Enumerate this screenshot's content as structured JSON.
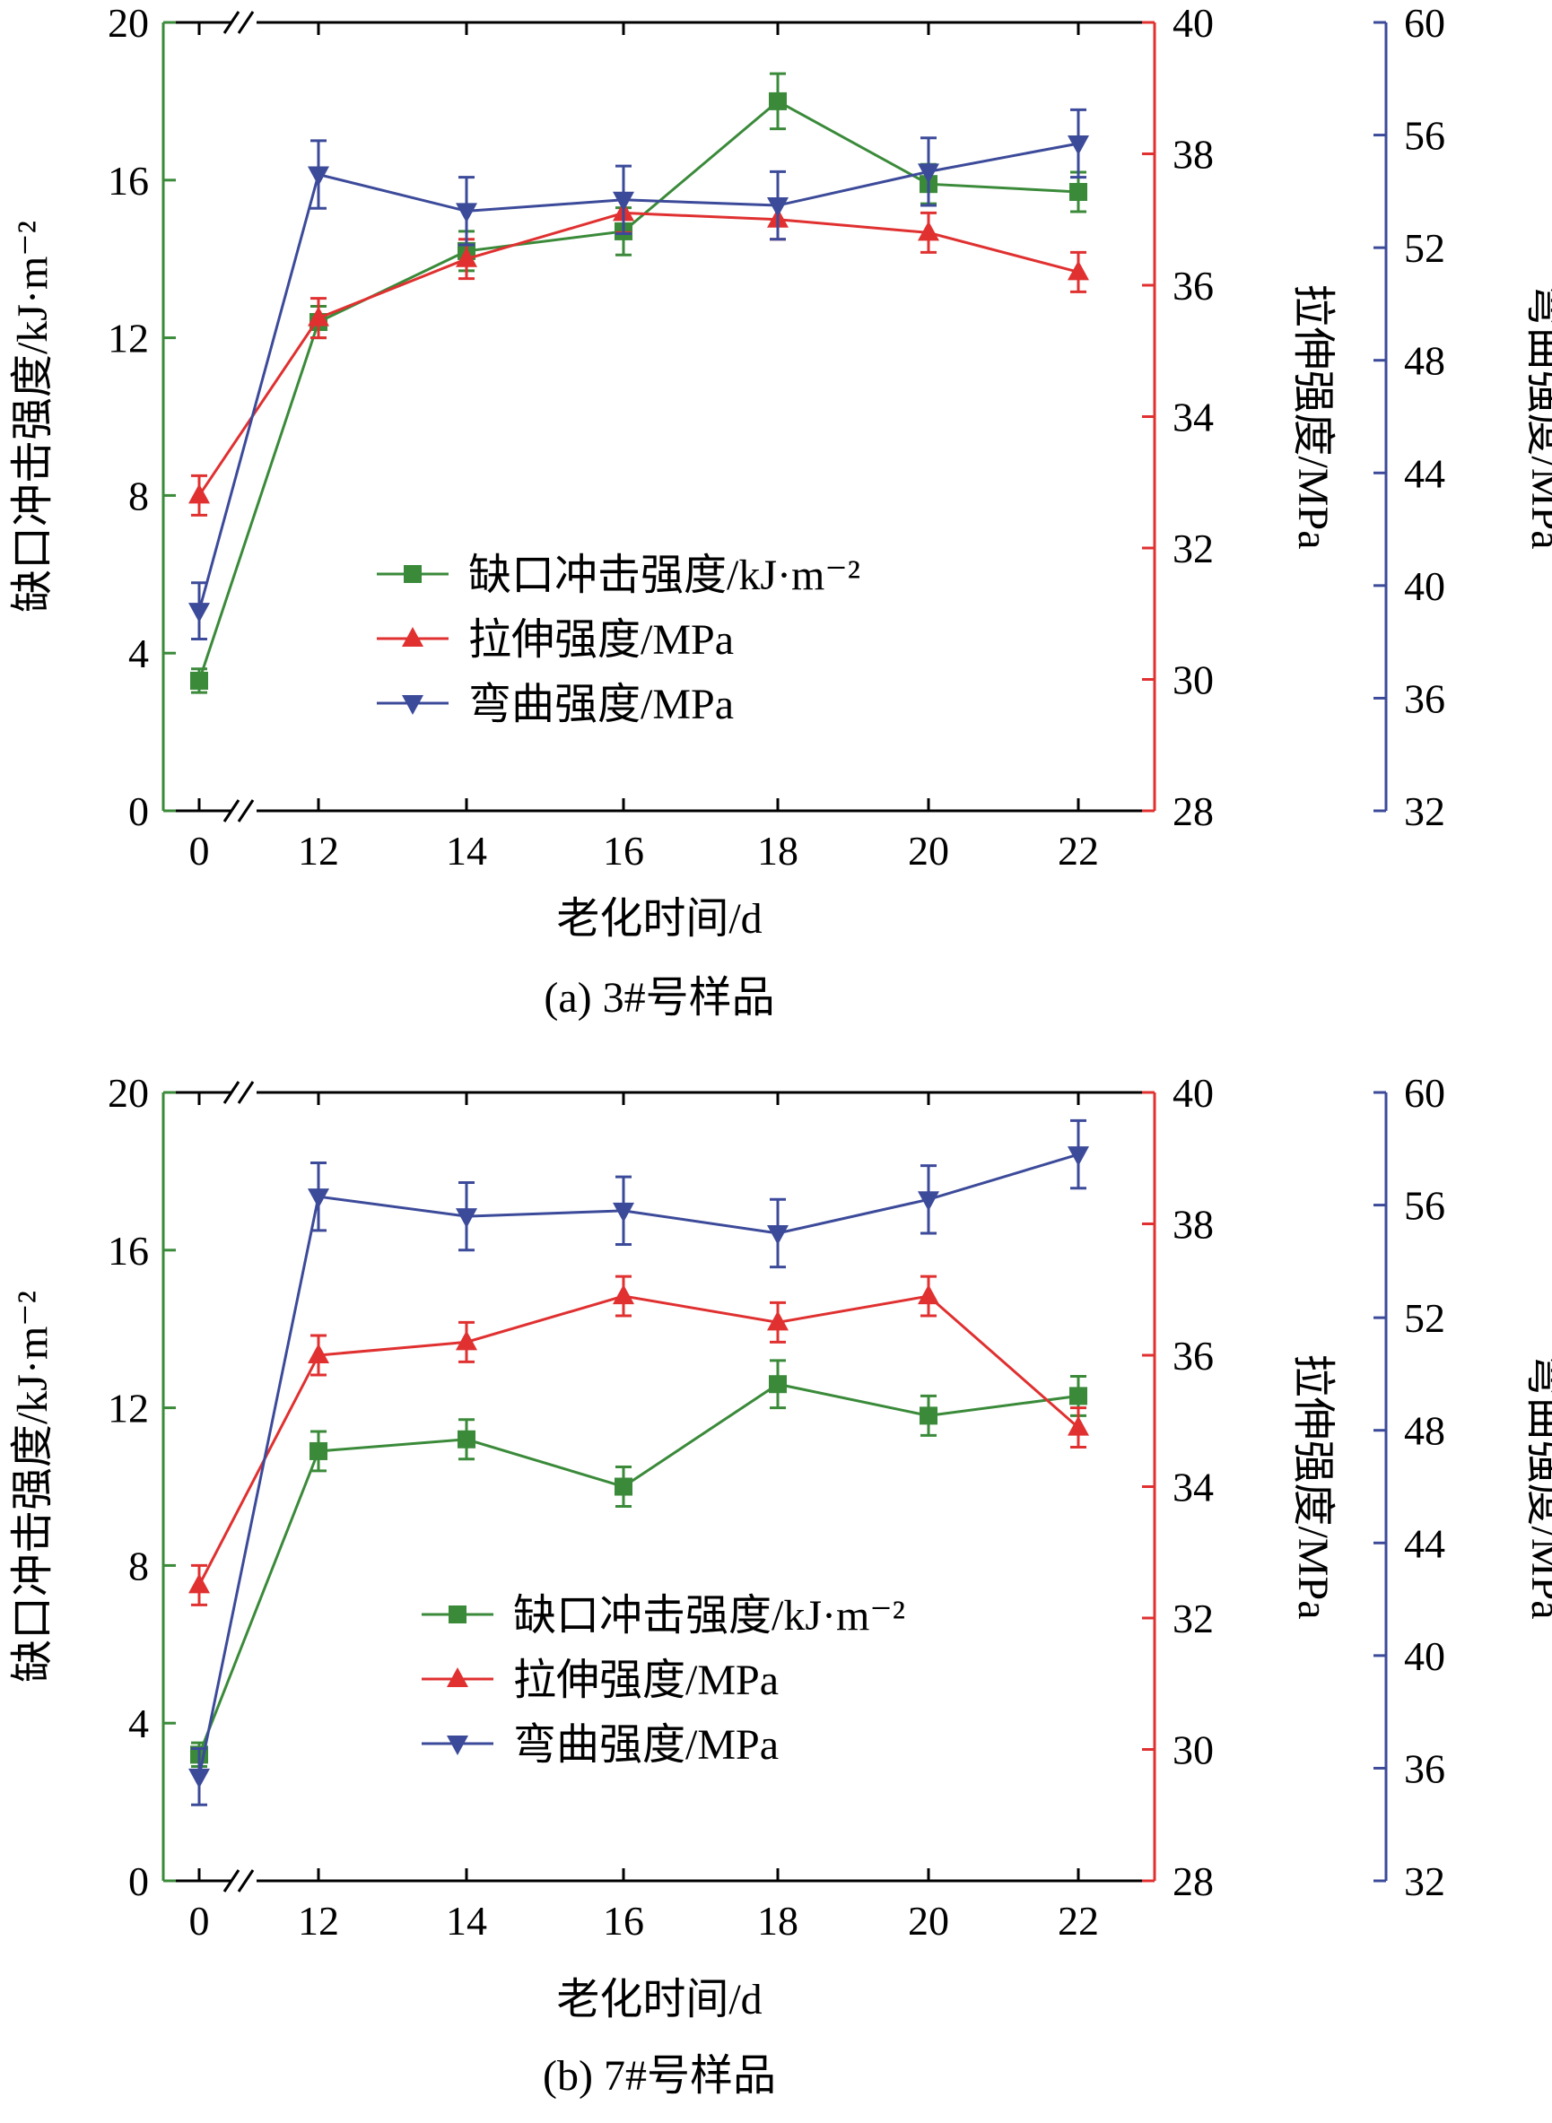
{
  "colors": {
    "impact": "#3a8a3a",
    "tensile": "#e03030",
    "flexural": "#3c4a9a",
    "frame": "#000000"
  },
  "chart_data": [
    {
      "type": "line",
      "caption": "(a) 3#号样品",
      "xlabel": "老化时间/d",
      "x": [
        0,
        12,
        14,
        16,
        18,
        20,
        22
      ],
      "x_ticks": [
        "0",
        "12",
        "14",
        "16",
        "18",
        "20",
        "22"
      ],
      "axis_break": "between 0 and 12",
      "grid": false,
      "legend_position": "center-left",
      "axes": {
        "left": {
          "label": "缺口冲击强度/kJ·m⁻²",
          "range": [
            0,
            20
          ],
          "ticks": [
            "0",
            "4",
            "8",
            "12",
            "16",
            "20"
          ]
        },
        "right1": {
          "label": "拉伸强度/MPa",
          "range": [
            28,
            40
          ],
          "ticks": [
            "28",
            "30",
            "32",
            "34",
            "36",
            "38",
            "40"
          ]
        },
        "right2": {
          "label": "弯曲强度/MPa",
          "range": [
            32,
            60
          ],
          "ticks": [
            "32",
            "36",
            "40",
            "44",
            "48",
            "52",
            "56",
            "60"
          ]
        }
      },
      "series": [
        {
          "name": "缺口冲击强度/kJ·m⁻²",
          "axis": "left",
          "color": "#3a8a3a",
          "marker": "square",
          "values": [
            3.3,
            12.4,
            14.2,
            14.7,
            18.0,
            15.9,
            15.7
          ],
          "error": [
            0.3,
            0.4,
            0.5,
            0.6,
            0.7,
            0.5,
            0.5
          ]
        },
        {
          "name": "拉伸强度/MPa",
          "axis": "right1",
          "color": "#e03030",
          "marker": "triangle-up",
          "values": [
            32.8,
            35.5,
            36.4,
            37.1,
            37.0,
            36.8,
            36.2
          ],
          "error": [
            0.3,
            0.3,
            0.3,
            0.3,
            0.3,
            0.3,
            0.3
          ]
        },
        {
          "name": "弯曲强度/MPa",
          "axis": "right2",
          "color": "#3c4a9a",
          "marker": "triangle-down",
          "values": [
            39.1,
            54.6,
            53.3,
            53.7,
            53.5,
            54.7,
            55.7
          ],
          "error": [
            1.0,
            1.2,
            1.2,
            1.2,
            1.2,
            1.2,
            1.2
          ]
        }
      ]
    },
    {
      "type": "line",
      "caption": "(b) 7#号样品",
      "xlabel": "老化时间/d",
      "x": [
        0,
        12,
        14,
        16,
        18,
        20,
        22
      ],
      "x_ticks": [
        "0",
        "12",
        "14",
        "16",
        "18",
        "20",
        "22"
      ],
      "axis_break": "between 0 and 12",
      "grid": false,
      "legend_position": "center-right",
      "axes": {
        "left": {
          "label": "缺口冲击强度/kJ·m⁻²",
          "range": [
            0,
            20
          ],
          "ticks": [
            "0",
            "4",
            "8",
            "12",
            "16",
            "20"
          ]
        },
        "right1": {
          "label": "拉伸强度/MPa",
          "range": [
            28,
            40
          ],
          "ticks": [
            "28",
            "30",
            "32",
            "34",
            "36",
            "38",
            "40"
          ]
        },
        "right2": {
          "label": "弯曲强度/MPa",
          "range": [
            32,
            60
          ],
          "ticks": [
            "32",
            "36",
            "40",
            "44",
            "48",
            "52",
            "56",
            "60"
          ]
        }
      },
      "series": [
        {
          "name": "缺口冲击强度/kJ·m⁻²",
          "axis": "left",
          "color": "#3a8a3a",
          "marker": "square",
          "values": [
            3.2,
            10.9,
            11.2,
            10.0,
            12.6,
            11.8,
            12.3
          ],
          "error": [
            0.3,
            0.5,
            0.5,
            0.5,
            0.6,
            0.5,
            0.5
          ]
        },
        {
          "name": "拉伸强度/MPa",
          "axis": "right1",
          "color": "#e03030",
          "marker": "triangle-up",
          "values": [
            32.5,
            36.0,
            36.2,
            36.9,
            36.5,
            36.9,
            34.9
          ],
          "error": [
            0.3,
            0.3,
            0.3,
            0.3,
            0.3,
            0.3,
            0.3
          ]
        },
        {
          "name": "弯曲强度/MPa",
          "axis": "right2",
          "color": "#3c4a9a",
          "marker": "triangle-down",
          "values": [
            35.7,
            56.3,
            55.6,
            55.8,
            55.0,
            56.2,
            57.8
          ],
          "error": [
            1.0,
            1.2,
            1.2,
            1.2,
            1.2,
            1.2,
            1.2
          ]
        }
      ]
    }
  ]
}
